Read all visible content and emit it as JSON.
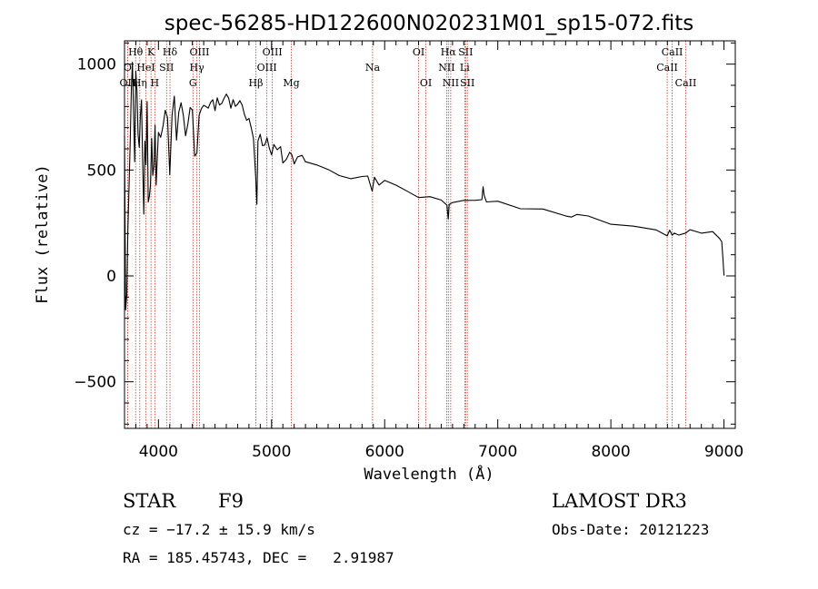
{
  "chart_data": {
    "type": "line",
    "title": "spec-56285-HD122600N020231M01_sp15-072.fits",
    "xlabel": "Wavelength (Å)",
    "ylabel": "Flux (relative)",
    "xlim": [
      3700,
      9100
    ],
    "ylim": [
      -720,
      1110
    ],
    "xticks": [
      4000,
      5000,
      6000,
      7000,
      8000,
      9000
    ],
    "xtick_labels": [
      "4000",
      "5000",
      "6000",
      "7000",
      "8000",
      "9000"
    ],
    "yticks": [
      -500,
      0,
      500,
      1000
    ],
    "ytick_labels": [
      "−500",
      "0",
      "500",
      "1000"
    ],
    "series": [
      {
        "name": "flux",
        "x": [
          3700,
          3710,
          3720,
          3730,
          3740,
          3750,
          3760,
          3770,
          3780,
          3790,
          3800,
          3810,
          3820,
          3830,
          3840,
          3850,
          3860,
          3870,
          3880,
          3890,
          3900,
          3910,
          3920,
          3930,
          3940,
          3950,
          3960,
          3970,
          3980,
          3990,
          4000,
          4020,
          4040,
          4060,
          4080,
          4100,
          4120,
          4140,
          4160,
          4180,
          4200,
          4220,
          4240,
          4260,
          4280,
          4300,
          4320,
          4340,
          4360,
          4380,
          4400,
          4420,
          4440,
          4460,
          4480,
          4500,
          4520,
          4540,
          4560,
          4580,
          4600,
          4620,
          4640,
          4660,
          4680,
          4700,
          4720,
          4740,
          4760,
          4780,
          4800,
          4820,
          4840,
          4860,
          4870,
          4880,
          4900,
          4920,
          4940,
          4960,
          4980,
          5000,
          5020,
          5050,
          5080,
          5100,
          5130,
          5160,
          5180,
          5200,
          5230,
          5270,
          5300,
          5400,
          5500,
          5600,
          5700,
          5800,
          5850,
          5890,
          5910,
          5950,
          6000,
          6100,
          6200,
          6300,
          6400,
          6500,
          6550,
          6562,
          6570,
          6600,
          6700,
          6800,
          6860,
          6870,
          6880,
          6900,
          7000,
          7200,
          7400,
          7600,
          7650,
          7700,
          7800,
          8000,
          8200,
          8400,
          8498,
          8520,
          8542,
          8560,
          8600,
          8662,
          8700,
          8800,
          8900,
          8960,
          8980,
          8990,
          9000
        ],
        "values": [
          650,
          -150,
          -100,
          220,
          420,
          620,
          880,
          1000,
          760,
          540,
          980,
          880,
          660,
          620,
          760,
          830,
          560,
          290,
          640,
          520,
          830,
          350,
          380,
          430,
          640,
          470,
          520,
          700,
          420,
          560,
          690,
          660,
          700,
          780,
          740,
          480,
          770,
          860,
          640,
          780,
          820,
          770,
          660,
          710,
          800,
          790,
          560,
          580,
          750,
          780,
          800,
          790,
          800,
          820,
          830,
          790,
          840,
          800,
          810,
          830,
          850,
          830,
          800,
          820,
          790,
          800,
          830,
          800,
          760,
          730,
          740,
          700,
          640,
          450,
          330,
          640,
          660,
          620,
          610,
          640,
          610,
          570,
          610,
          590,
          600,
          530,
          550,
          580,
          570,
          540,
          570,
          560,
          540,
          530,
          510,
          480,
          470,
          460,
          460,
          400,
          460,
          440,
          440,
          420,
          400,
          380,
          370,
          360,
          340,
          280,
          330,
          350,
          345,
          345,
          360,
          420,
          380,
          360,
          350,
          330,
          310,
          290,
          290,
          280,
          270,
          250,
          230,
          210,
          200,
          210,
          190,
          210,
          200,
          190,
          220,
          210,
          200,
          185,
          170,
          80,
          0
        ]
      }
    ],
    "line_markers": [
      {
        "label": "Hθ",
        "x": 3798,
        "row": 1
      },
      {
        "label": "K",
        "x": 3934,
        "row": 1
      },
      {
        "label": "Hδ",
        "x": 4102,
        "row": 1
      },
      {
        "label": "OIII",
        "x": 4363,
        "row": 1
      },
      {
        "label": "OIII",
        "x": 5007,
        "row": 1
      },
      {
        "label": "OI",
        "x": 6300,
        "row": 1
      },
      {
        "label": "Hα",
        "x": 6563,
        "row": 1
      },
      {
        "label": "SII",
        "x": 6716,
        "row": 1
      },
      {
        "label": "CaII",
        "x": 8542,
        "row": 1
      },
      {
        "label": "O",
        "x": 3727,
        "row": 2
      },
      {
        "label": "HeI",
        "x": 3889,
        "row": 2
      },
      {
        "label": "SII",
        "x": 4072,
        "row": 2
      },
      {
        "label": "Hγ",
        "x": 4340,
        "row": 2
      },
      {
        "label": "OIII",
        "x": 4959,
        "row": 2
      },
      {
        "label": "Na",
        "x": 5893,
        "row": 2
      },
      {
        "label": "NII",
        "x": 6548,
        "row": 2
      },
      {
        "label": "Li",
        "x": 6708,
        "row": 2
      },
      {
        "label": "CaII",
        "x": 8498,
        "row": 2
      },
      {
        "label": "OII",
        "x": 3727,
        "row": 3
      },
      {
        "label": "Hη",
        "x": 3835,
        "row": 3
      },
      {
        "label": "H",
        "x": 3968,
        "row": 3
      },
      {
        "label": "G",
        "x": 4305,
        "row": 3
      },
      {
        "label": "Hβ",
        "x": 4861,
        "row": 3
      },
      {
        "label": "Mg",
        "x": 5175,
        "row": 3
      },
      {
        "label": "OI",
        "x": 6364,
        "row": 3
      },
      {
        "label": "NII",
        "x": 6584,
        "row": 3
      },
      {
        "label": "SII",
        "x": 6731,
        "row": 3
      },
      {
        "label": "CaII",
        "x": 8662,
        "row": 3
      }
    ],
    "footer": {
      "object_type": "STAR",
      "spectral_class": "F9",
      "survey": "LAMOST DR3",
      "redshift": "cz = −17.2 ± 15.9 km/s",
      "obs_date": "Obs-Date: 20121223",
      "coords": "RA = 185.45743, DEC =   2.91987"
    },
    "colors": {
      "spectrum": "#000000",
      "marker_lines": "#c0392b",
      "axes": "#000000"
    }
  }
}
